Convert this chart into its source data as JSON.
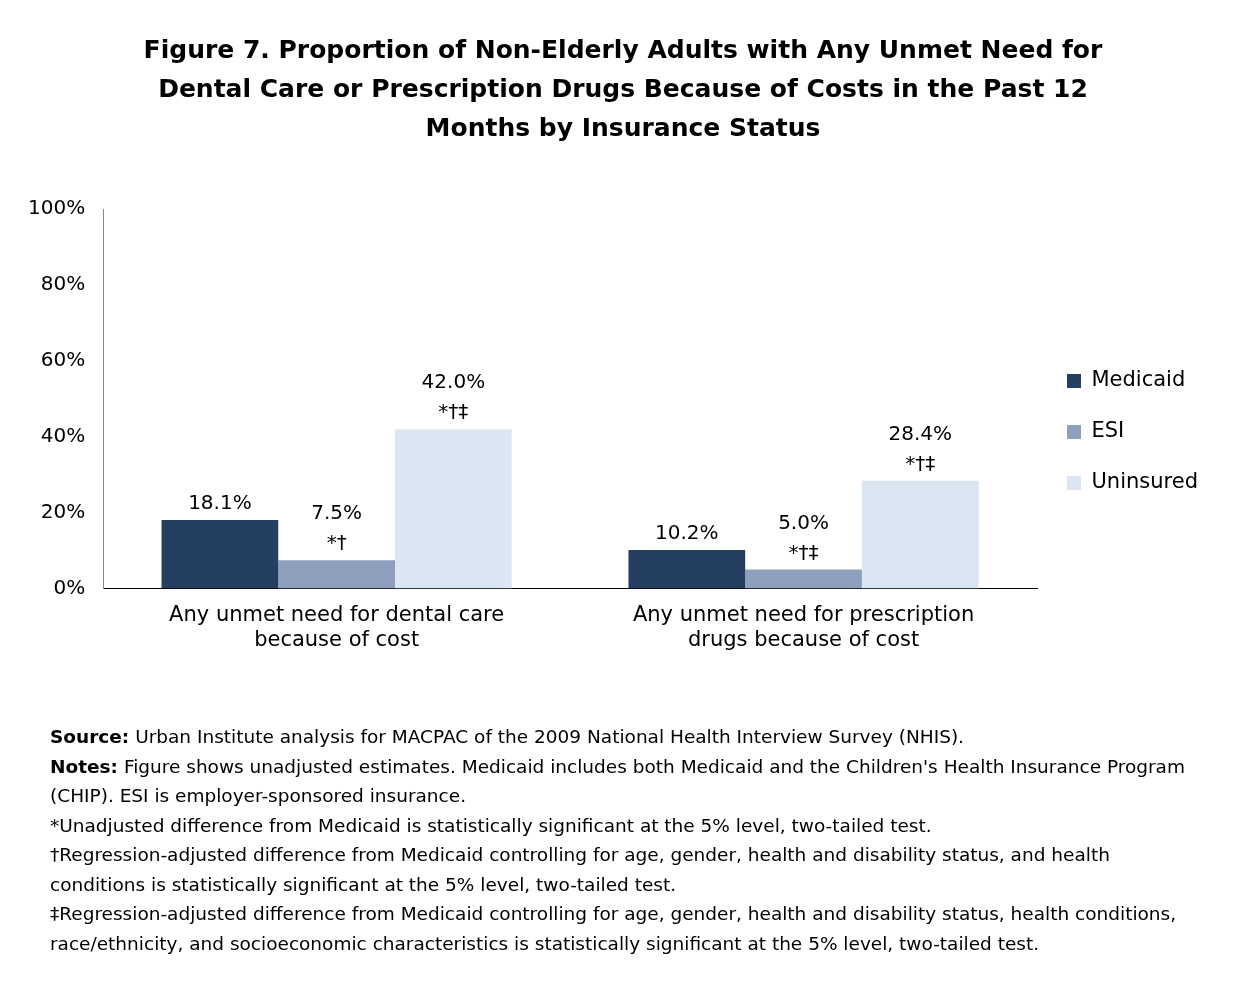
{
  "chart_data": {
    "type": "bar",
    "title": "Figure 7. Proportion of Non-Elderly Adults with Any Unmet Need for Dental Care or Prescription Drugs Because of Costs in the Past 12 Months by Insurance Status",
    "categories": [
      "Any unmet need for dental care because of cost",
      "Any unmet need for prescription drugs because of cost"
    ],
    "series": [
      {
        "name": "Medicaid",
        "color": "#253f60",
        "values": [
          18.1,
          10.2
        ],
        "value_labels": [
          "18.1%",
          "10.2%"
        ]
      },
      {
        "name": "ESI",
        "color": "#8e9fbd",
        "values": [
          7.5,
          5.0
        ],
        "value_labels": [
          "7.5%\n*†",
          "5.0%\n*†‡"
        ]
      },
      {
        "name": "Uninsured",
        "color": "#dce6f2",
        "values": [
          42.0,
          28.4
        ],
        "value_labels": [
          "42.0%\n*†‡",
          "28.4%\n*†‡"
        ]
      }
    ],
    "ylim": [
      0,
      100
    ],
    "yticks": [
      {
        "value": 0,
        "label": "0%"
      },
      {
        "value": 20,
        "label": "20%"
      },
      {
        "value": 40,
        "label": "40%"
      },
      {
        "value": 60,
        "label": "60%"
      },
      {
        "value": 80,
        "label": "80%"
      },
      {
        "value": 100,
        "label": "100%"
      }
    ],
    "grid": false,
    "legend": "right",
    "annotations": [
      "Source: Urban Institute analysis for MACPAC of the 2009 National Health Interview Survey (NHIS).",
      "Notes: Figure shows unadjusted estimates. Medicaid includes both Medicaid and the Children's Health Insurance Program (CHIP). ESI is employer-sponsored insurance.",
      "*Unadjusted difference from Medicaid is statistically significant at the 5% level, two-tailed test.",
      "†Regression-adjusted difference from Medicaid controlling for age, gender, health and disability status, and health conditions is statistically significant at the 5% level, two-tailed test.",
      "‡Regression-adjusted difference from Medicaid controlling for age, gender, health and disability status, health conditions, race/ethnicity, and socioeconomic characteristics is statistically significant at the 5% level, two-tailed test."
    ]
  }
}
